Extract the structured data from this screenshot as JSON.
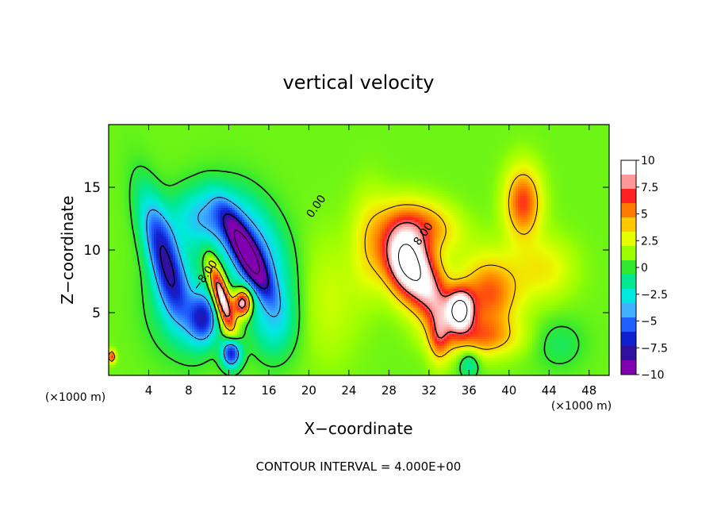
{
  "chart_data": {
    "type": "heatmap",
    "title": "vertical velocity",
    "xlabel": "X−coordinate",
    "ylabel": "Z−coordinate",
    "x_unit_left": "(×1000 m)",
    "x_unit_right": "(×1000 m)",
    "footer": "CONTOUR INTERVAL = 4.000E+00",
    "xlim": [
      0,
      50
    ],
    "ylim": [
      0,
      20
    ],
    "x_ticks": [
      4,
      8,
      12,
      16,
      20,
      24,
      28,
      32,
      36,
      40,
      44,
      48
    ],
    "x_tick_labels": [
      "4",
      "8",
      "12",
      "16",
      "20",
      "24",
      "28",
      "32",
      "36",
      "40",
      "44",
      "48"
    ],
    "y_ticks": [
      5,
      10,
      15
    ],
    "y_tick_labels": [
      "5",
      "10",
      "15"
    ],
    "colorbar": {
      "min": -10,
      "max": 10,
      "ticks": [
        10,
        7.5,
        5,
        2.5,
        0,
        -2.5,
        -5,
        -7.5,
        -10
      ],
      "tick_labels": [
        "10",
        "7.5",
        "5",
        "2.5",
        "0",
        "−2.5",
        "−5",
        "−7.5",
        "−10"
      ],
      "colors_top_to_bottom": [
        "#ffffff",
        "#ff9999",
        "#ff2020",
        "#ff7a00",
        "#ffc800",
        "#e6ff00",
        "#9cff00",
        "#30e830",
        "#00e890",
        "#00e8e0",
        "#40b0ff",
        "#2060ff",
        "#1020d0",
        "#3010a0",
        "#8000b0"
      ]
    },
    "contour_interval": 4,
    "contour_labels": [
      {
        "text": "0.00",
        "x": 20.7,
        "z": 13.5
      },
      {
        "text": "8.00",
        "x": 31.4,
        "z": 11.3
      },
      {
        "text": "−8.00",
        "x": 9.6,
        "z": 8.0
      }
    ],
    "features": [
      {
        "kind": "updraft",
        "x": 29.8,
        "z": 9.0,
        "peak": 12
      },
      {
        "kind": "updraft",
        "x": 35.1,
        "z": 5.2,
        "peak": 10.5
      },
      {
        "kind": "updraft",
        "x": 11.3,
        "z": 6.2,
        "peak": 11
      },
      {
        "kind": "updraft",
        "x": 13.4,
        "z": 5.8,
        "peak": 10.5
      },
      {
        "kind": "updraft",
        "x": 41.4,
        "z": 13.8,
        "peak": 6
      },
      {
        "kind": "downdraft",
        "x": 13.8,
        "z": 9.8,
        "peak": -10
      },
      {
        "kind": "downdraft",
        "x": 5.5,
        "z": 9.5,
        "peak": -8
      },
      {
        "kind": "downdraft",
        "x": 9.6,
        "z": 12.6,
        "peak": -4.5
      },
      {
        "kind": "downdraft",
        "x": 12.3,
        "z": 1.8,
        "peak": -8.5
      }
    ]
  }
}
